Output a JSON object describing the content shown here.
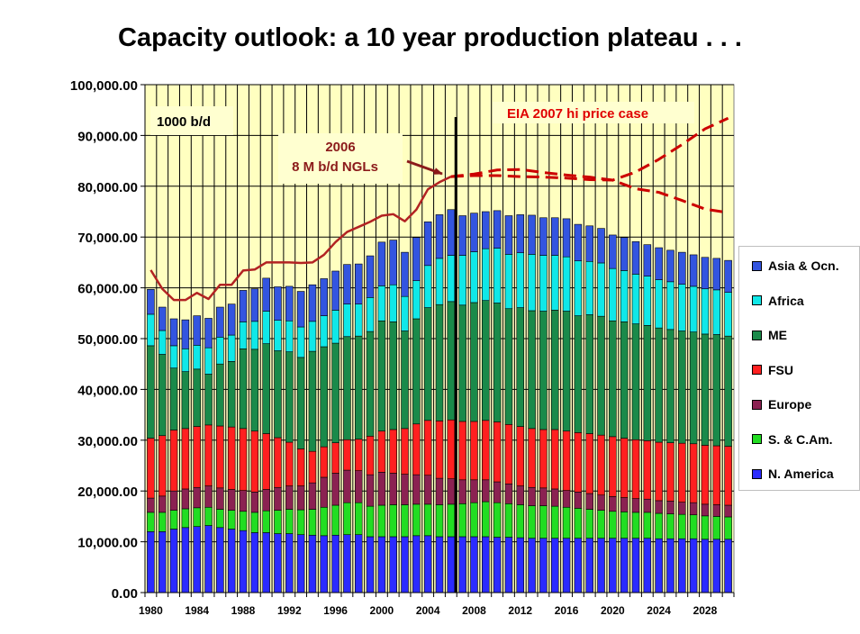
{
  "title": "Capacity outlook: a 10 year production plateau . . .",
  "unit_label": "1000 b/d",
  "annotation_ngl": [
    "2006",
    "8 M b/d NGLs"
  ],
  "annotation_eia": "EIA 2007 hi price case",
  "colors": {
    "plot_bg": "#ffffc0",
    "N. America": "#2b2bff",
    "S. & C.Am.": "#22dd22",
    "Europe": "#8b2252",
    "FSU": "#ff2020",
    "ME": "#1a8a4a",
    "Africa": "#10e8e8",
    "Asia & Ocn.": "#3355e0",
    "history_line": "#b22222",
    "projection_line": "#cc0000"
  },
  "chart_data": {
    "type": "bar",
    "stacked": true,
    "x": [
      1980,
      1981,
      1982,
      1983,
      1984,
      1985,
      1986,
      1987,
      1988,
      1989,
      1990,
      1991,
      1992,
      1993,
      1994,
      1995,
      1996,
      1997,
      1998,
      1999,
      2000,
      2001,
      2002,
      2003,
      2004,
      2005,
      2006,
      2007,
      2008,
      2009,
      2010,
      2011,
      2012,
      2013,
      2014,
      2015,
      2016,
      2017,
      2018,
      2019,
      2020,
      2021,
      2022,
      2023,
      2024,
      2025,
      2026,
      2027,
      2028,
      2029,
      2030
    ],
    "x_tick_labels": [
      "1980",
      "1984",
      "1988",
      "1992",
      "1996",
      "2000",
      "2004",
      "2008",
      "2012",
      "2016",
      "2020",
      "2024",
      "2028"
    ],
    "ylim": [
      0,
      100000
    ],
    "y_tick_labels": [
      "0.00",
      "10,000.00",
      "20,000.00",
      "30,000.00",
      "40,000.00",
      "50,000.00",
      "60,000.00",
      "70,000.00",
      "80,000.00",
      "90,000.00",
      "100,000.00"
    ],
    "grid": true,
    "legend_position": "right",
    "series": [
      {
        "name": "N. America",
        "values": [
          12000,
          12000,
          12500,
          12800,
          13000,
          13200,
          12800,
          12500,
          12200,
          11800,
          11800,
          11600,
          11600,
          11400,
          11300,
          11200,
          11300,
          11400,
          11400,
          11000,
          11000,
          11000,
          11000,
          11200,
          11200,
          11000,
          11000,
          11000,
          11000,
          11000,
          10900,
          10900,
          10800,
          10700,
          10700,
          10700,
          10700,
          10700,
          10700,
          10700,
          10700,
          10700,
          10700,
          10700,
          10600,
          10600,
          10600,
          10600,
          10500,
          10500,
          10500
        ]
      },
      {
        "name": "S. & C.Am.",
        "values": [
          3800,
          3800,
          3700,
          3700,
          3700,
          3600,
          3600,
          3700,
          3800,
          4000,
          4300,
          4600,
          4800,
          4900,
          5100,
          5600,
          5900,
          6300,
          6300,
          6000,
          6200,
          6300,
          6300,
          6200,
          6200,
          6300,
          6400,
          6500,
          6700,
          6900,
          6800,
          6600,
          6500,
          6400,
          6400,
          6300,
          6100,
          5900,
          5700,
          5500,
          5300,
          5200,
          5100,
          5100,
          5000,
          4900,
          4800,
          4700,
          4600,
          4500,
          4400
        ]
      },
      {
        "name": "Europe",
        "values": [
          2800,
          3200,
          3800,
          3900,
          4000,
          4200,
          4200,
          4100,
          4100,
          4000,
          4200,
          4500,
          4600,
          4700,
          5200,
          5900,
          6300,
          6400,
          6300,
          6200,
          6500,
          6200,
          6000,
          5800,
          5700,
          5200,
          5000,
          4700,
          4500,
          4300,
          4100,
          3900,
          3700,
          3600,
          3500,
          3400,
          3300,
          3200,
          3100,
          3000,
          2900,
          2800,
          2700,
          2600,
          2500,
          2500,
          2400,
          2400,
          2300,
          2300,
          2300
        ]
      },
      {
        "name": "FSU",
        "values": [
          11800,
          11900,
          12000,
          11900,
          12000,
          12000,
          12200,
          12300,
          12200,
          12000,
          11000,
          9800,
          8600,
          7300,
          6200,
          6000,
          6000,
          6000,
          6200,
          7600,
          8100,
          8600,
          9000,
          10000,
          10800,
          11300,
          11600,
          11500,
          11500,
          11700,
          11800,
          11700,
          11700,
          11600,
          11500,
          11700,
          11700,
          11700,
          11800,
          11800,
          11800,
          11700,
          11600,
          11500,
          11500,
          11500,
          11600,
          11600,
          11600,
          11600,
          11600
        ]
      },
      {
        "name": "ME",
        "values": [
          18200,
          16000,
          12200,
          11200,
          11300,
          10000,
          12200,
          12900,
          15700,
          16100,
          17700,
          17100,
          17800,
          18000,
          19700,
          19700,
          19600,
          20300,
          20300,
          20600,
          21700,
          21200,
          19200,
          20700,
          22200,
          22900,
          23300,
          22900,
          23400,
          23600,
          23400,
          22800,
          23400,
          23200,
          23300,
          23500,
          23600,
          23000,
          23400,
          23400,
          22800,
          22900,
          22800,
          22700,
          22500,
          22300,
          22100,
          22000,
          21900,
          21900,
          21700
        ]
      },
      {
        "name": "Africa",
        "values": [
          6200,
          4700,
          4400,
          4500,
          4700,
          5200,
          5300,
          5200,
          5300,
          5500,
          6400,
          6000,
          6100,
          6000,
          5900,
          6100,
          6500,
          6400,
          6300,
          6700,
          6900,
          7300,
          6800,
          7500,
          8300,
          9100,
          9100,
          9800,
          10000,
          10200,
          10800,
          10700,
          10800,
          11100,
          11000,
          10800,
          10700,
          10800,
          10500,
          10500,
          10300,
          10100,
          9800,
          9700,
          9500,
          9400,
          9200,
          9000,
          8900,
          8800,
          8600
        ]
      },
      {
        "name": "Asia & Ocn.",
        "values": [
          4900,
          4600,
          5300,
          5700,
          5800,
          5800,
          5900,
          6100,
          6200,
          6400,
          6500,
          6600,
          6800,
          7000,
          7200,
          7300,
          7700,
          7800,
          7900,
          8200,
          8600,
          8800,
          8700,
          8500,
          8600,
          8600,
          9000,
          7800,
          7600,
          7300,
          7400,
          7600,
          7500,
          7700,
          7400,
          7400,
          7500,
          7200,
          7000,
          6800,
          6600,
          6500,
          6400,
          6200,
          6300,
          6200,
          6300,
          6200,
          6200,
          6200,
          6300
        ]
      }
    ],
    "lines": [
      {
        "name": "historical",
        "style": "solid",
        "x": [
          1980,
          1981,
          1982,
          1983,
          1984,
          1985,
          1986,
          1987,
          1988,
          1989,
          1990,
          1991,
          1992,
          1993,
          1994,
          1995,
          1996,
          1997,
          1998,
          1999,
          2000,
          2001,
          2002,
          2003,
          2004,
          2005,
          2006
        ],
        "values": [
          63500,
          59800,
          57600,
          57600,
          59000,
          57800,
          60600,
          60600,
          63400,
          63600,
          65000,
          65000,
          65000,
          64900,
          65000,
          66500,
          69000,
          71000,
          72000,
          73000,
          74200,
          74500,
          73100,
          75400,
          79400,
          80800,
          81900
        ]
      },
      {
        "name": "projection_low",
        "style": "dashed",
        "x": [
          2006,
          2008,
          2010,
          2012,
          2014,
          2016,
          2018,
          2020,
          2022,
          2024,
          2026,
          2028,
          2030
        ],
        "values": [
          81900,
          82400,
          83200,
          83300,
          82700,
          82200,
          81800,
          81200,
          79500,
          78800,
          77200,
          75500,
          74800
        ]
      },
      {
        "name": "EIA 2007 hi price case",
        "style": "dashed",
        "x": [
          2006,
          2008,
          2010,
          2012,
          2014,
          2016,
          2018,
          2020,
          2022,
          2024,
          2026,
          2028,
          2030
        ],
        "values": [
          81900,
          82100,
          82100,
          81900,
          81800,
          81600,
          81300,
          81200,
          82800,
          85300,
          88200,
          91300,
          93400
        ]
      }
    ],
    "marker_year": 2006
  }
}
